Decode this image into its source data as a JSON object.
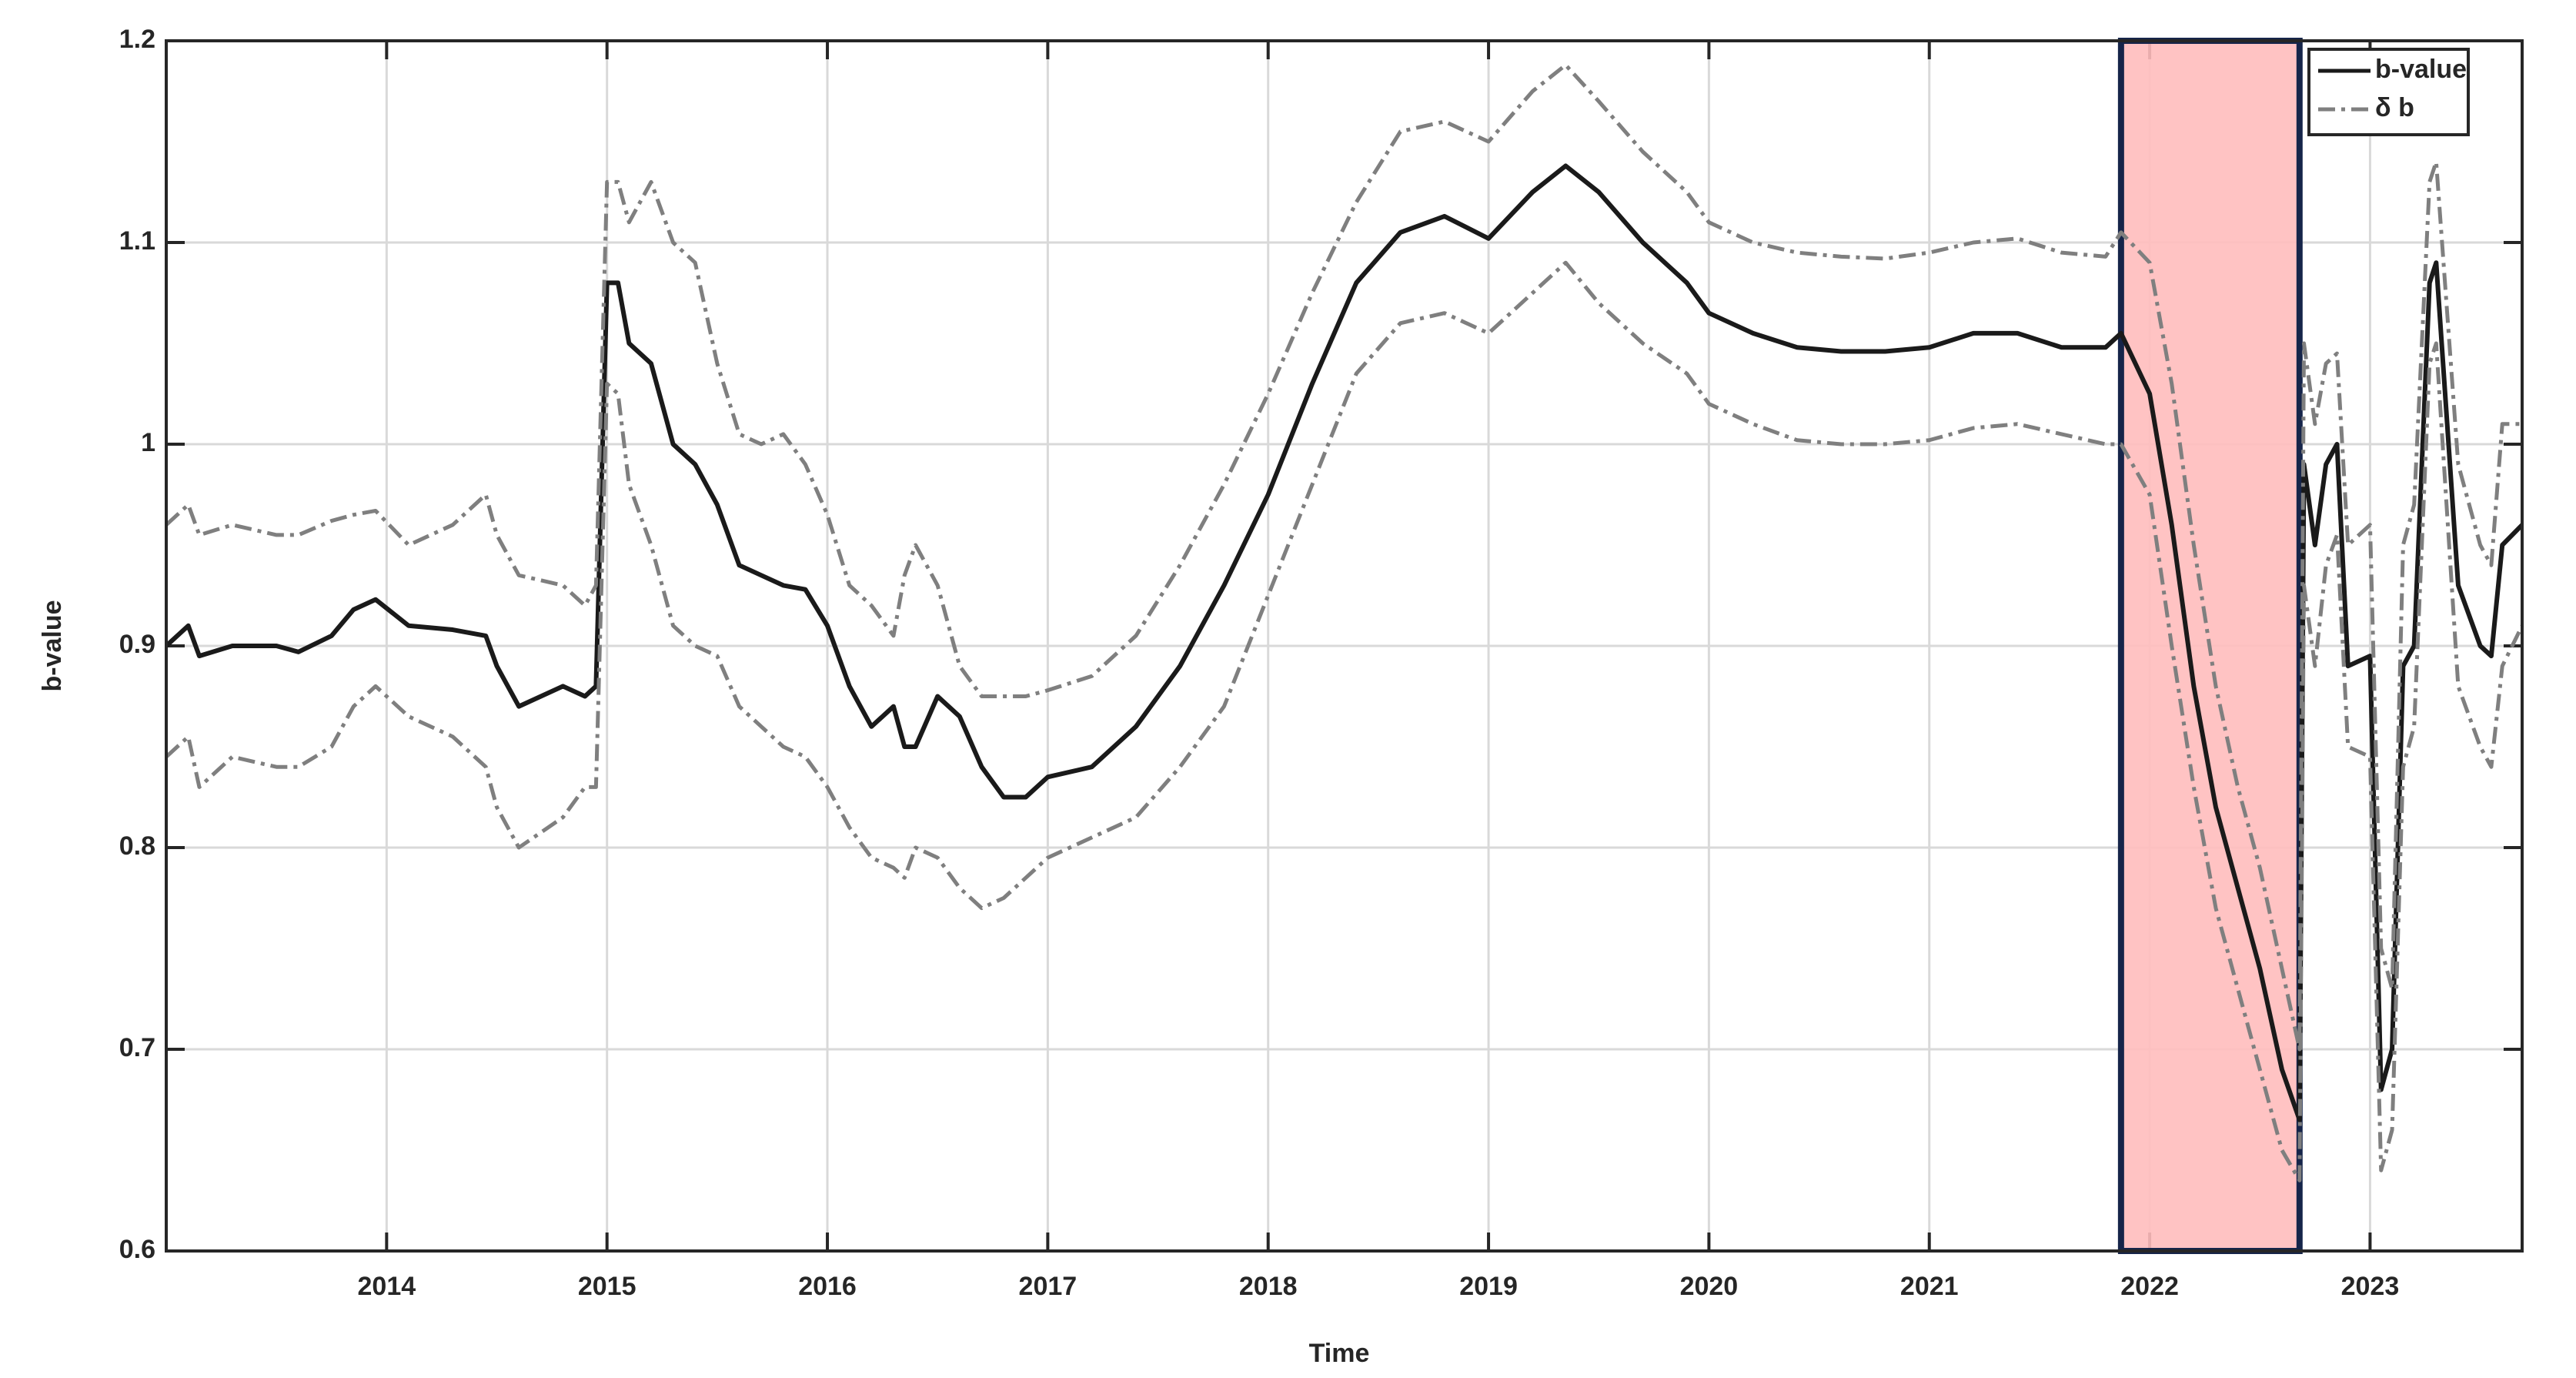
{
  "chart_data": {
    "type": "line",
    "xlabel": "Time",
    "ylabel": "b-value",
    "x": [
      2013.0,
      2013.1,
      2013.15,
      2013.3,
      2013.5,
      2013.6,
      2013.75,
      2013.85,
      2013.95,
      2014.1,
      2014.3,
      2014.45,
      2014.5,
      2014.6,
      2014.8,
      2014.9,
      2014.95,
      2015.0,
      2015.05,
      2015.1,
      2015.2,
      2015.3,
      2015.4,
      2015.5,
      2015.6,
      2015.7,
      2015.8,
      2015.9,
      2016.0,
      2016.1,
      2016.2,
      2016.3,
      2016.35,
      2016.4,
      2016.5,
      2016.6,
      2016.7,
      2016.8,
      2016.9,
      2017.0,
      2017.2,
      2017.4,
      2017.6,
      2017.8,
      2018.0,
      2018.2,
      2018.4,
      2018.6,
      2018.8,
      2019.0,
      2019.2,
      2019.35,
      2019.5,
      2019.7,
      2019.9,
      2020.0,
      2020.2,
      2020.4,
      2020.6,
      2020.8,
      2021.0,
      2021.2,
      2021.4,
      2021.6,
      2021.8,
      2021.87,
      2022.0,
      2022.1,
      2022.2,
      2022.3,
      2022.4,
      2022.5,
      2022.6,
      2022.68,
      2022.7,
      2022.75,
      2022.8,
      2022.85,
      2022.9,
      2023.0,
      2023.05,
      2023.1,
      2023.15,
      2023.2,
      2023.27,
      2023.3,
      2023.4,
      2023.5,
      2023.55,
      2023.6,
      2023.69
    ],
    "series": [
      {
        "name": "b-value",
        "color": "#1a1a1a",
        "style": "solid",
        "values": [
          0.9,
          0.91,
          0.895,
          0.9,
          0.9,
          0.897,
          0.905,
          0.918,
          0.923,
          0.91,
          0.908,
          0.905,
          0.89,
          0.87,
          0.88,
          0.875,
          0.88,
          1.08,
          1.08,
          1.05,
          1.04,
          1.0,
          0.99,
          0.97,
          0.94,
          0.935,
          0.93,
          0.928,
          0.91,
          0.88,
          0.86,
          0.87,
          0.85,
          0.85,
          0.875,
          0.865,
          0.84,
          0.825,
          0.825,
          0.835,
          0.84,
          0.86,
          0.89,
          0.93,
          0.975,
          1.03,
          1.08,
          1.105,
          1.113,
          1.102,
          1.125,
          1.138,
          1.125,
          1.1,
          1.08,
          1.065,
          1.055,
          1.048,
          1.046,
          1.046,
          1.048,
          1.055,
          1.055,
          1.048,
          1.048,
          1.055,
          1.025,
          0.96,
          0.88,
          0.82,
          0.78,
          0.74,
          0.69,
          0.665,
          0.99,
          0.95,
          0.99,
          1.0,
          0.89,
          0.895,
          0.68,
          0.7,
          0.89,
          0.9,
          1.08,
          1.09,
          0.93,
          0.9,
          0.895,
          0.95,
          0.96
        ]
      },
      {
        "name": "δ b",
        "color": "#7f7f7f",
        "style": "dashdot",
        "values": [
          0.96,
          0.97,
          0.955,
          0.96,
          0.955,
          0.955,
          0.962,
          0.965,
          0.967,
          0.95,
          0.96,
          0.975,
          0.955,
          0.935,
          0.93,
          0.92,
          0.93,
          1.13,
          1.13,
          1.11,
          1.13,
          1.1,
          1.09,
          1.04,
          1.005,
          1.0,
          1.005,
          0.99,
          0.965,
          0.93,
          0.92,
          0.905,
          0.935,
          0.95,
          0.93,
          0.89,
          0.875,
          0.875,
          0.875,
          0.878,
          0.885,
          0.905,
          0.94,
          0.98,
          1.025,
          1.075,
          1.12,
          1.155,
          1.16,
          1.15,
          1.175,
          1.188,
          1.17,
          1.145,
          1.125,
          1.11,
          1.1,
          1.095,
          1.093,
          1.092,
          1.095,
          1.1,
          1.102,
          1.095,
          1.093,
          1.105,
          1.09,
          1.03,
          0.95,
          0.88,
          0.83,
          0.79,
          0.74,
          0.7,
          1.05,
          1.01,
          1.04,
          1.045,
          0.95,
          0.96,
          0.75,
          0.73,
          0.95,
          0.97,
          1.13,
          1.14,
          0.99,
          0.95,
          0.94,
          1.01,
          1.01
        ],
        "lower": [
          0.845,
          0.855,
          0.83,
          0.845,
          0.84,
          0.84,
          0.85,
          0.87,
          0.88,
          0.865,
          0.855,
          0.84,
          0.82,
          0.8,
          0.815,
          0.83,
          0.83,
          1.03,
          1.025,
          0.98,
          0.95,
          0.91,
          0.9,
          0.895,
          0.87,
          0.86,
          0.85,
          0.845,
          0.83,
          0.81,
          0.795,
          0.79,
          0.785,
          0.8,
          0.795,
          0.78,
          0.77,
          0.775,
          0.785,
          0.795,
          0.805,
          0.815,
          0.84,
          0.87,
          0.925,
          0.98,
          1.035,
          1.06,
          1.065,
          1.055,
          1.075,
          1.09,
          1.07,
          1.05,
          1.035,
          1.02,
          1.01,
          1.002,
          1.0,
          1.0,
          1.002,
          1.008,
          1.01,
          1.005,
          1.0,
          1.0,
          0.975,
          0.9,
          0.83,
          0.77,
          0.73,
          0.69,
          0.65,
          0.635,
          0.93,
          0.89,
          0.94,
          0.955,
          0.85,
          0.845,
          0.64,
          0.66,
          0.84,
          0.86,
          1.04,
          1.05,
          0.88,
          0.85,
          0.84,
          0.89,
          0.91
        ]
      }
    ],
    "highlight": {
      "xlim": [
        2021.87,
        2022.68
      ],
      "color": "#ffbdbd",
      "edgecolor": "#16254a"
    },
    "xlim": [
      2013.0,
      2023.69
    ],
    "xticks": [
      2014,
      2015,
      2016,
      2017,
      2018,
      2019,
      2020,
      2021,
      2022,
      2023
    ],
    "ylim": [
      0.6,
      1.2
    ],
    "yticks": [
      0.6,
      0.7,
      0.8,
      0.9,
      1,
      1.1,
      1.2
    ],
    "grid": true,
    "legend": "upper right"
  }
}
